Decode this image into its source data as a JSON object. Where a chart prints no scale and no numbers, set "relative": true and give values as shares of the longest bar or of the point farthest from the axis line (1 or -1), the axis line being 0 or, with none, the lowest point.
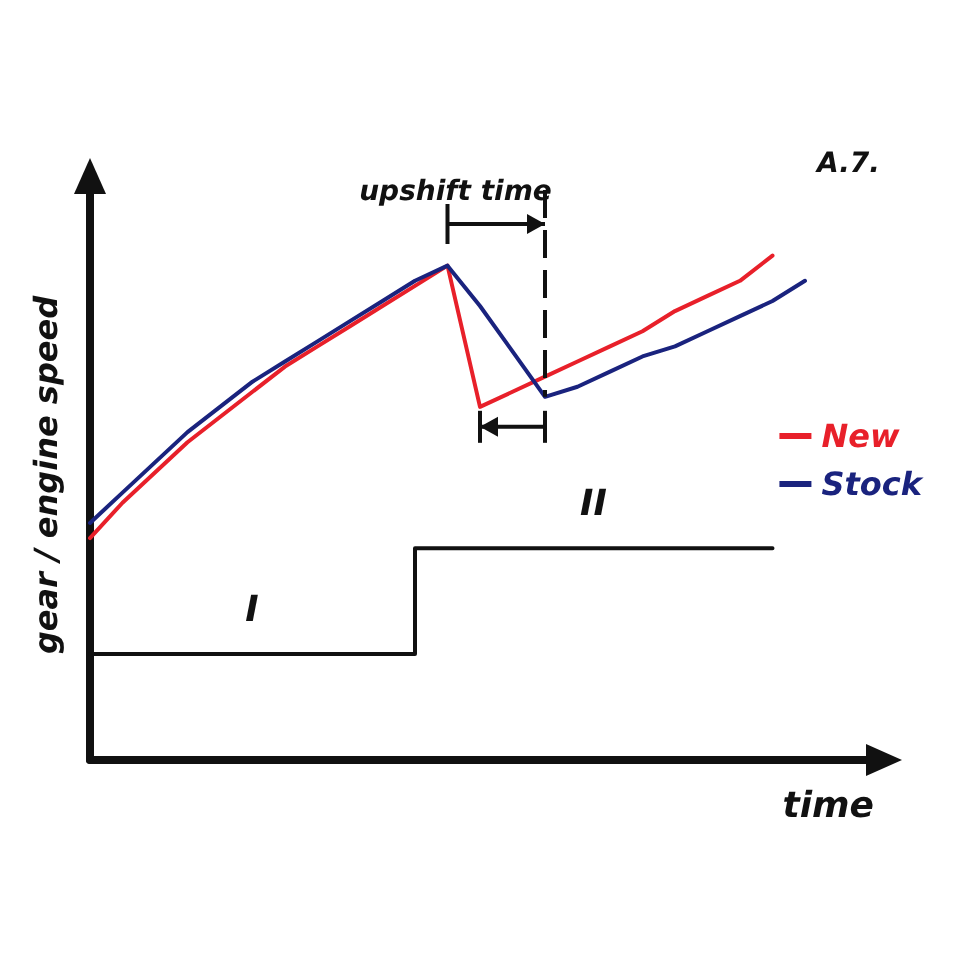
{
  "chart_data": {
    "type": "line",
    "relative": true,
    "xlabel": "time",
    "ylabel": "gear / engine speed",
    "categories": [
      null,
      null,
      null,
      null,
      null,
      null,
      null,
      null,
      null,
      null,
      null,
      null,
      null,
      null,
      null,
      null,
      null,
      null,
      null,
      null,
      null,
      null,
      null,
      null,
      null
    ],
    "series": [
      {
        "name": "New",
        "color": "#e8202a",
        "values": [
          0.44,
          0.51,
          0.57,
          0.63,
          0.68,
          0.73,
          0.78,
          0.82,
          0.86,
          0.9,
          0.94,
          0.98,
          0.7,
          0.73,
          0.76,
          0.79,
          0.82,
          0.85,
          0.89,
          0.92,
          0.95,
          1.0,
          null,
          null,
          null
        ]
      },
      {
        "name": "Stock",
        "color": "#1a237e",
        "values": [
          0.47,
          0.53,
          0.59,
          0.65,
          0.7,
          0.75,
          0.79,
          0.83,
          0.87,
          0.91,
          0.95,
          0.98,
          0.9,
          0.81,
          0.72,
          0.74,
          0.77,
          0.8,
          0.82,
          0.85,
          0.88,
          0.91,
          0.95,
          null,
          null
        ]
      },
      {
        "type": "step",
        "color": "#111111",
        "values": [
          0.21,
          0.21,
          0.21,
          0.21,
          0.21,
          0.21,
          0.21,
          0.21,
          0.21,
          0.21,
          0.21,
          0.42,
          0.42,
          0.42,
          0.42,
          0.42,
          0.42,
          0.42,
          0.42,
          0.42,
          0.42,
          0.42,
          null,
          null,
          null
        ]
      }
    ],
    "annotations": [
      "upshift time",
      "A.7.",
      "I",
      "II"
    ],
    "legend": "right",
    "marker": "none",
    "line_style": "solid",
    "grid": false
  }
}
